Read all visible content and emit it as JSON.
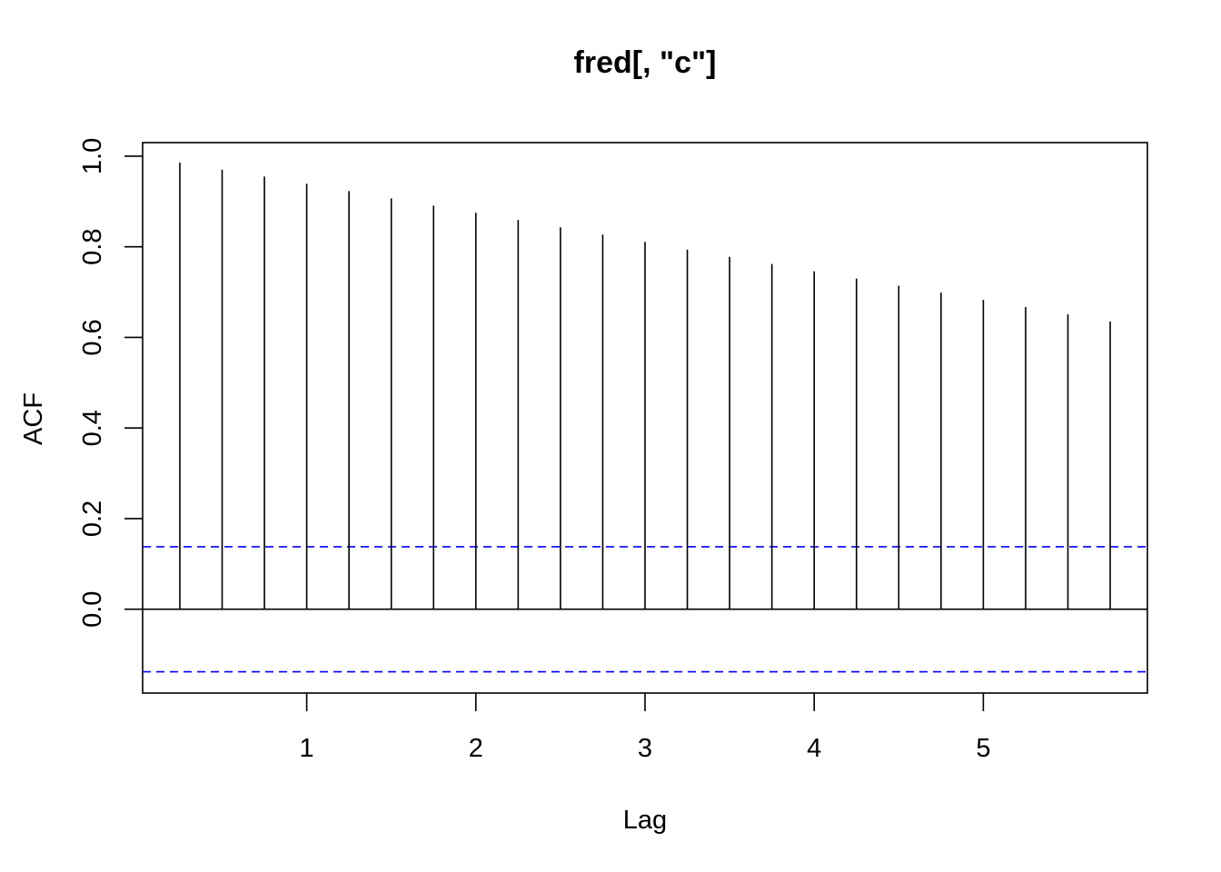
{
  "chart_data": {
    "type": "bar",
    "title": "fred[, \"c\"]",
    "xlabel": "Lag",
    "ylabel": "ACF",
    "xlim": [
      0.03,
      5.97
    ],
    "ylim": [
      -0.185,
      1.03
    ],
    "x_ticks": [
      "1",
      "2",
      "3",
      "4",
      "5"
    ],
    "y_ticks": [
      "0.0",
      "0.2",
      "0.4",
      "0.6",
      "0.8",
      "1.0"
    ],
    "lags": [
      0.25,
      0.5,
      0.75,
      1.0,
      1.25,
      1.5,
      1.75,
      2.0,
      2.25,
      2.5,
      2.75,
      3.0,
      3.25,
      3.5,
      3.75,
      4.0,
      4.25,
      4.5,
      4.75,
      5.0,
      5.25,
      5.5,
      5.75
    ],
    "acf": [
      0.986,
      0.97,
      0.955,
      0.939,
      0.923,
      0.907,
      0.891,
      0.875,
      0.859,
      0.843,
      0.827,
      0.811,
      0.794,
      0.778,
      0.762,
      0.746,
      0.73,
      0.714,
      0.699,
      0.683,
      0.667,
      0.651,
      0.635
    ],
    "confidence_bound": 0.138,
    "colors": {
      "spike": "#000000",
      "ci_line": "#0000ff",
      "zero_line": "#000000"
    },
    "grid": false
  }
}
